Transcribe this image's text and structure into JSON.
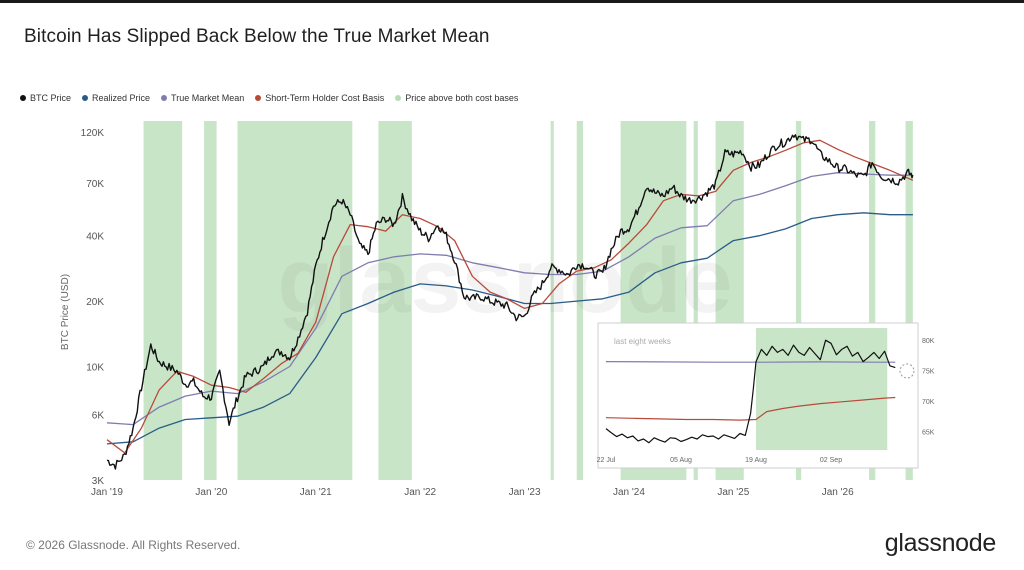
{
  "title": "Bitcoin Has Slipped Back Below the True Market Mean",
  "legend": [
    {
      "label": "BTC Price",
      "color": "#111111"
    },
    {
      "label": "Realized Price",
      "color": "#2a5c8a"
    },
    {
      "label": "True Market Mean",
      "color": "#7f7db0"
    },
    {
      "label": "Short-Term Holder Cost Basis",
      "color": "#b84a3a"
    },
    {
      "label": "Price above both cost bases",
      "color": "#b9dbb8"
    }
  ],
  "footer": "© 2026 Glassnode. All Rights Reserved.",
  "brand": "glassnode",
  "watermark": "glassnode",
  "chart_data": [
    {
      "type": "line",
      "ylabel": "BTC Price (USD)",
      "y_scale": "log",
      "ylim": [
        3000,
        135000
      ],
      "xlim": [
        2019.0,
        2026.75
      ],
      "x_ticks": [
        {
          "value": 2019.0,
          "label": "Jan '19"
        },
        {
          "value": 2020.0,
          "label": "Jan '20"
        },
        {
          "value": 2021.0,
          "label": "Jan '21"
        },
        {
          "value": 2022.0,
          "label": "Jan '22"
        },
        {
          "value": 2023.0,
          "label": "Jan '23"
        },
        {
          "value": 2024.0,
          "label": "Jan '24"
        },
        {
          "value": 2025.0,
          "label": "Jan '25"
        },
        {
          "value": 2026.0,
          "label": "Jan '26"
        }
      ],
      "y_ticks": [
        {
          "value": 3000,
          "label": "3K"
        },
        {
          "value": 6000,
          "label": "6K"
        },
        {
          "value": 10000,
          "label": "10K"
        },
        {
          "value": 20000,
          "label": "20K"
        },
        {
          "value": 40000,
          "label": "40K"
        },
        {
          "value": 70000,
          "label": "70K"
        },
        {
          "value": 120000,
          "label": "120K"
        }
      ],
      "shaded_ranges": [
        [
          2019.35,
          2019.72
        ],
        [
          2019.93,
          2020.05
        ],
        [
          2020.25,
          2021.35
        ],
        [
          2021.6,
          2021.92
        ],
        [
          2023.25,
          2023.28
        ],
        [
          2023.5,
          2023.56
        ],
        [
          2023.92,
          2024.55
        ],
        [
          2024.62,
          2024.66
        ],
        [
          2024.83,
          2025.1
        ],
        [
          2025.6,
          2025.65
        ],
        [
          2026.3,
          2026.36
        ],
        [
          2026.65,
          2026.72
        ]
      ],
      "series": [
        {
          "name": "BTC Price",
          "color": "#111111",
          "x": [
            2019.0,
            2019.08,
            2019.17,
            2019.25,
            2019.33,
            2019.42,
            2019.5,
            2019.58,
            2019.67,
            2019.75,
            2019.83,
            2019.92,
            2020.0,
            2020.08,
            2020.17,
            2020.25,
            2020.33,
            2020.42,
            2020.5,
            2020.58,
            2020.67,
            2020.75,
            2020.83,
            2020.92,
            2021.0,
            2021.08,
            2021.17,
            2021.25,
            2021.33,
            2021.42,
            2021.5,
            2021.58,
            2021.67,
            2021.75,
            2021.83,
            2021.92,
            2022.0,
            2022.08,
            2022.17,
            2022.25,
            2022.33,
            2022.42,
            2022.5,
            2022.58,
            2022.67,
            2022.75,
            2022.83,
            2022.92,
            2023.0,
            2023.08,
            2023.17,
            2023.25,
            2023.33,
            2023.42,
            2023.5,
            2023.58,
            2023.67,
            2023.75,
            2023.83,
            2023.92,
            2024.0,
            2024.08,
            2024.17,
            2024.25,
            2024.33,
            2024.42,
            2024.5,
            2024.58,
            2024.67,
            2024.75,
            2024.83,
            2024.92,
            2025.0,
            2025.08,
            2025.17,
            2025.25,
            2025.33,
            2025.42,
            2025.5,
            2025.58,
            2025.67,
            2025.75,
            2025.83,
            2025.92,
            2026.0,
            2026.08,
            2026.17,
            2026.25,
            2026.33,
            2026.42,
            2026.5,
            2026.58,
            2026.67,
            2026.72
          ],
          "y": [
            3700,
            3500,
            3900,
            5200,
            8000,
            12500,
            10500,
            10000,
            9500,
            8300,
            8500,
            7300,
            7200,
            9400,
            5500,
            7200,
            9000,
            9500,
            10000,
            11500,
            11700,
            11000,
            13500,
            18000,
            29000,
            40000,
            55000,
            58000,
            50000,
            36000,
            33000,
            45000,
            48000,
            45000,
            60000,
            48000,
            42000,
            39000,
            45000,
            40000,
            31000,
            21000,
            20500,
            21000,
            20000,
            19500,
            19000,
            16800,
            17000,
            21000,
            24000,
            28500,
            28000,
            26500,
            29500,
            29300,
            26500,
            27000,
            34500,
            42000,
            43500,
            52000,
            68000,
            63000,
            61000,
            67000,
            61000,
            58500,
            59500,
            63500,
            69000,
            96000,
            95000,
            98000,
            83000,
            84500,
            95000,
            105000,
            108000,
            118000,
            110000,
            111000,
            95000,
            88000,
            82000,
            81000,
            76000,
            75000,
            87000,
            75000,
            73000,
            71000,
            78000,
            76000
          ]
        },
        {
          "name": "Realized Price",
          "color": "#2a5c8a",
          "x": [
            2019.0,
            2019.25,
            2019.5,
            2019.75,
            2020.0,
            2020.25,
            2020.5,
            2020.75,
            2021.0,
            2021.25,
            2021.5,
            2021.75,
            2022.0,
            2022.25,
            2022.5,
            2022.75,
            2023.0,
            2023.25,
            2023.5,
            2023.75,
            2024.0,
            2024.25,
            2024.5,
            2024.75,
            2025.0,
            2025.25,
            2025.5,
            2025.75,
            2026.0,
            2026.25,
            2026.5,
            2026.72
          ],
          "y": [
            4400,
            4500,
            5200,
            5700,
            5800,
            5900,
            6500,
            7500,
            11000,
            17500,
            19500,
            22000,
            24000,
            23500,
            22500,
            21000,
            19500,
            19500,
            20000,
            20500,
            22000,
            27000,
            30000,
            31500,
            38000,
            40000,
            43000,
            48000,
            50000,
            51000,
            50000,
            50000
          ]
        },
        {
          "name": "True Market Mean",
          "color": "#7f7db0",
          "x": [
            2019.0,
            2019.25,
            2019.5,
            2019.75,
            2020.0,
            2020.25,
            2020.5,
            2020.75,
            2021.0,
            2021.25,
            2021.5,
            2021.75,
            2022.0,
            2022.25,
            2022.5,
            2022.75,
            2023.0,
            2023.25,
            2023.5,
            2023.75,
            2024.0,
            2024.25,
            2024.5,
            2024.75,
            2025.0,
            2025.25,
            2025.5,
            2025.75,
            2026.0,
            2026.25,
            2026.5,
            2026.72
          ],
          "y": [
            5500,
            5400,
            6500,
            7300,
            7700,
            7500,
            8500,
            10000,
            15000,
            26000,
            30000,
            32000,
            33000,
            32500,
            30000,
            28500,
            27000,
            26500,
            26500,
            27500,
            32000,
            39000,
            43500,
            44500,
            58000,
            62000,
            68000,
            75000,
            78000,
            77000,
            76000,
            76000
          ]
        },
        {
          "name": "Short-Term Holder Cost Basis",
          "color": "#b84a3a",
          "x": [
            2019.0,
            2019.17,
            2019.33,
            2019.5,
            2019.67,
            2019.83,
            2020.0,
            2020.17,
            2020.33,
            2020.5,
            2020.67,
            2020.83,
            2021.0,
            2021.17,
            2021.33,
            2021.5,
            2021.67,
            2021.83,
            2022.0,
            2022.17,
            2022.33,
            2022.5,
            2022.67,
            2022.83,
            2023.0,
            2023.17,
            2023.33,
            2023.5,
            2023.67,
            2023.83,
            2024.0,
            2024.17,
            2024.33,
            2024.5,
            2024.67,
            2024.83,
            2025.0,
            2025.17,
            2025.33,
            2025.5,
            2025.67,
            2025.83,
            2026.0,
            2026.17,
            2026.33,
            2026.5,
            2026.72
          ],
          "y": [
            4600,
            4000,
            5200,
            7800,
            9500,
            9000,
            8200,
            8000,
            7600,
            8800,
            10300,
            11500,
            16000,
            32000,
            45000,
            44000,
            42000,
            50000,
            48000,
            44000,
            38000,
            26000,
            22000,
            20500,
            18500,
            19500,
            24000,
            27500,
            28500,
            31000,
            37000,
            45000,
            58000,
            62000,
            61000,
            64000,
            80000,
            87000,
            92000,
            99000,
            107000,
            110000,
            100000,
            92000,
            86000,
            80000,
            72000
          ]
        }
      ]
    },
    {
      "type": "line",
      "title": "last eight weeks",
      "y_ticks": [
        {
          "value": 65000,
          "label": "65K"
        },
        {
          "value": 70000,
          "label": "70K"
        },
        {
          "value": 75000,
          "label": "75K"
        },
        {
          "value": 80000,
          "label": "80K"
        }
      ],
      "ylim": [
        62000,
        82000
      ],
      "x_ticks": [
        {
          "value": 0,
          "label": "22 Jul"
        },
        {
          "value": 14,
          "label": "05 Aug"
        },
        {
          "value": 28,
          "label": "19 Aug"
        },
        {
          "value": 42,
          "label": "02 Sep"
        }
      ],
      "xlim": [
        0,
        56
      ],
      "shaded_ranges": [
        [
          28,
          52.5
        ]
      ],
      "series": [
        {
          "name": "BTC Price",
          "color": "#111111",
          "x": [
            0,
            1,
            2,
            3,
            4,
            5,
            6,
            7,
            8,
            9,
            10,
            11,
            12,
            13,
            14,
            15,
            16,
            17,
            18,
            19,
            20,
            21,
            22,
            23,
            24,
            25,
            26,
            27,
            27.5,
            28,
            29,
            30,
            31,
            32,
            33,
            34,
            35,
            36,
            37,
            38,
            39,
            40,
            41,
            42,
            43,
            44,
            45,
            46,
            47,
            48,
            49,
            50,
            51,
            52,
            53,
            54
          ],
          "y": [
            65500,
            64800,
            64200,
            64600,
            64000,
            64300,
            63500,
            63800,
            63200,
            64000,
            63600,
            63300,
            64000,
            63900,
            63400,
            63700,
            64100,
            63800,
            64500,
            64200,
            64300,
            63800,
            64500,
            64200,
            63900,
            64700,
            64400,
            68000,
            72000,
            76500,
            78500,
            77500,
            79000,
            78000,
            78500,
            77500,
            79200,
            78000,
            77500,
            78800,
            77800,
            76800,
            80000,
            79500,
            77600,
            78500,
            79000,
            77400,
            78000,
            76500,
            77200,
            78000,
            77000,
            78200,
            75800,
            75500
          ]
        },
        {
          "name": "True Market Mean",
          "color": "#7f7db0",
          "x": [
            0,
            10,
            20,
            30,
            40,
            50,
            54
          ],
          "y": [
            76500,
            76450,
            76400,
            76400,
            76450,
            76400,
            76400
          ]
        },
        {
          "name": "Short-Term Holder Cost Basis",
          "color": "#b84a3a",
          "x": [
            0,
            5,
            10,
            15,
            20,
            25,
            28,
            30,
            33,
            36,
            40,
            44,
            48,
            52,
            54
          ],
          "y": [
            67300,
            67200,
            67100,
            67000,
            67000,
            66900,
            67000,
            68300,
            68800,
            69200,
            69600,
            69900,
            70200,
            70500,
            70600
          ]
        }
      ]
    }
  ]
}
